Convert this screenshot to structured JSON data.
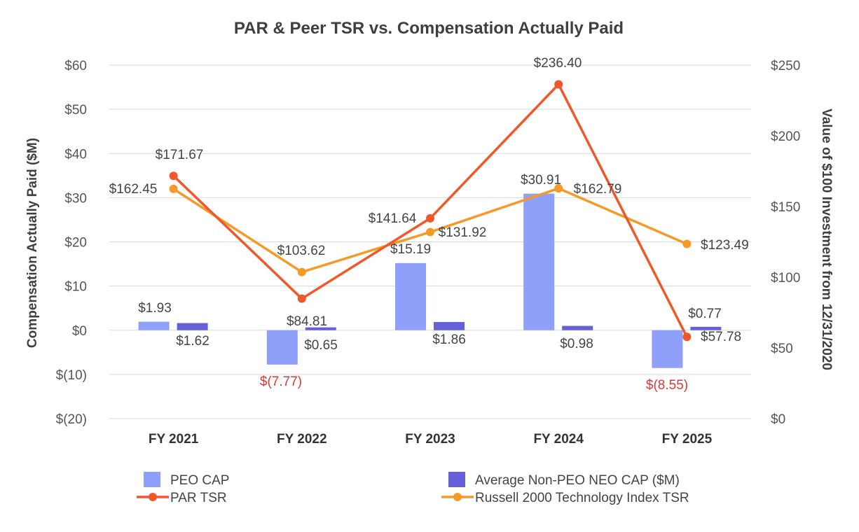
{
  "chart_data": {
    "type": "bar",
    "title": "PAR & Peer TSR vs. Compensation Actually Paid",
    "categories": [
      "FY 2021",
      "FY 2022",
      "FY 2023",
      "FY 2024",
      "FY 2025"
    ],
    "y_left": {
      "label": "Compensation Actually Paid ($M)",
      "range": [
        -20,
        60
      ],
      "ticks": [
        60,
        50,
        40,
        30,
        20,
        10,
        0,
        -10,
        -20
      ],
      "tick_labels": [
        "$60",
        "$50",
        "$40",
        "$30",
        "$20",
        "$10",
        "$0",
        "$(10)",
        "$(20)"
      ]
    },
    "y_right": {
      "label": "Value of $100 Investment from 12/31/2020",
      "range": [
        0,
        250
      ],
      "ticks": [
        250,
        200,
        150,
        100,
        50,
        0
      ],
      "tick_labels": [
        "$250",
        "$200",
        "$150",
        "$100",
        "$50",
        "$0"
      ]
    },
    "bar_series": [
      {
        "name": "PEO CAP",
        "axis": "left",
        "color": "#8fa0fb",
        "values": [
          1.93,
          -7.77,
          15.19,
          30.91,
          -8.55
        ],
        "labels": [
          "$1.93",
          "$(7.77)",
          "$15.19",
          "$30.91",
          "$(8.55)"
        ]
      },
      {
        "name": "Average Non-PEO NEO CAP ($M)",
        "axis": "left",
        "color": "#6661d9",
        "values": [
          1.62,
          0.65,
          1.86,
          0.98,
          0.77
        ],
        "labels": [
          "$1.62",
          "$0.65",
          "$1.86",
          "$0.98",
          "$0.77"
        ]
      }
    ],
    "line_series": [
      {
        "name": "PAR TSR",
        "axis": "right",
        "color": "#f0582a",
        "values": [
          171.67,
          84.81,
          141.64,
          236.4,
          57.78
        ],
        "labels": [
          "$171.67",
          "$84.81",
          "$141.64",
          "$236.40",
          "$57.78"
        ]
      },
      {
        "name": "Russell 2000 Technology Index TSR",
        "axis": "right",
        "color": "#f59a26",
        "values": [
          162.45,
          103.62,
          131.92,
          162.79,
          123.49
        ],
        "labels": [
          "$162.45",
          "$103.62",
          "$131.92",
          "$162.79",
          "$123.49"
        ]
      }
    ],
    "legend": [
      "PEO CAP",
      "Average Non-PEO NEO CAP ($M)",
      "PAR TSR",
      "Russell 2000 Technology Index TSR"
    ],
    "legend_position": "bottom",
    "grid": true
  }
}
